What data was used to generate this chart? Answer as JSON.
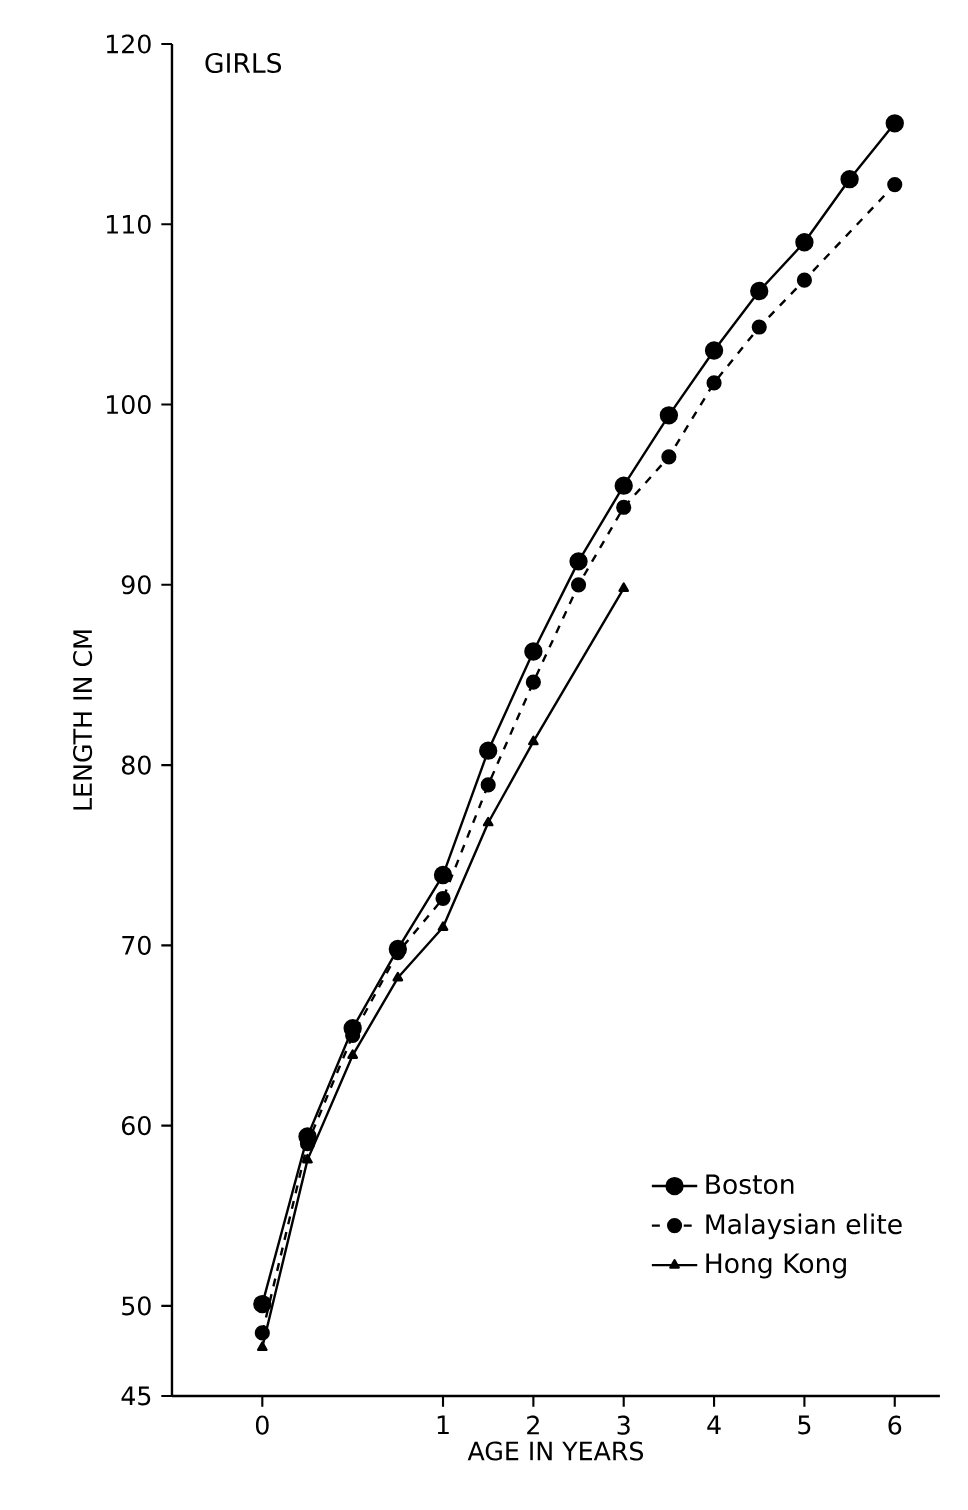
{
  "chart_data": {
    "type": "line",
    "xlabel": "AGE IN YEARS",
    "ylabel": "LENGTH IN CM",
    "annotations": [
      "GIRLS"
    ],
    "categories": [
      "0",
      null,
      null,
      null,
      "1",
      null,
      "2",
      null,
      "3",
      null,
      "4",
      null,
      "5",
      null,
      "6"
    ],
    "ylim": [
      45,
      120
    ],
    "yticks": [
      45,
      50,
      60,
      70,
      80,
      90,
      100,
      110,
      120
    ],
    "legend": "bottom right",
    "series": [
      {
        "name": "Boston",
        "color": "#000000",
        "marker": "circle",
        "line_style": "solid",
        "values": [
          50.1,
          59.4,
          65.4,
          69.8,
          73.9,
          80.8,
          86.3,
          91.3,
          95.5,
          99.4,
          103.0,
          106.3,
          109.0,
          112.5,
          115.6
        ]
      },
      {
        "name": "Malaysian elite",
        "color": "#000000",
        "marker": "circle",
        "line_style": "dashed",
        "values": [
          48.5,
          59.0,
          65.0,
          69.6,
          72.6,
          78.9,
          84.6,
          90.0,
          94.3,
          97.1,
          101.2,
          104.3,
          106.9,
          null,
          112.2
        ]
      },
      {
        "name": "Hong Kong",
        "color": "#000000",
        "marker": "triangle",
        "line_style": "solid",
        "values": [
          47.7,
          58.1,
          63.9,
          68.2,
          71.0,
          76.8,
          81.3,
          null,
          89.8,
          null,
          null,
          null,
          null,
          null,
          null
        ]
      }
    ]
  }
}
